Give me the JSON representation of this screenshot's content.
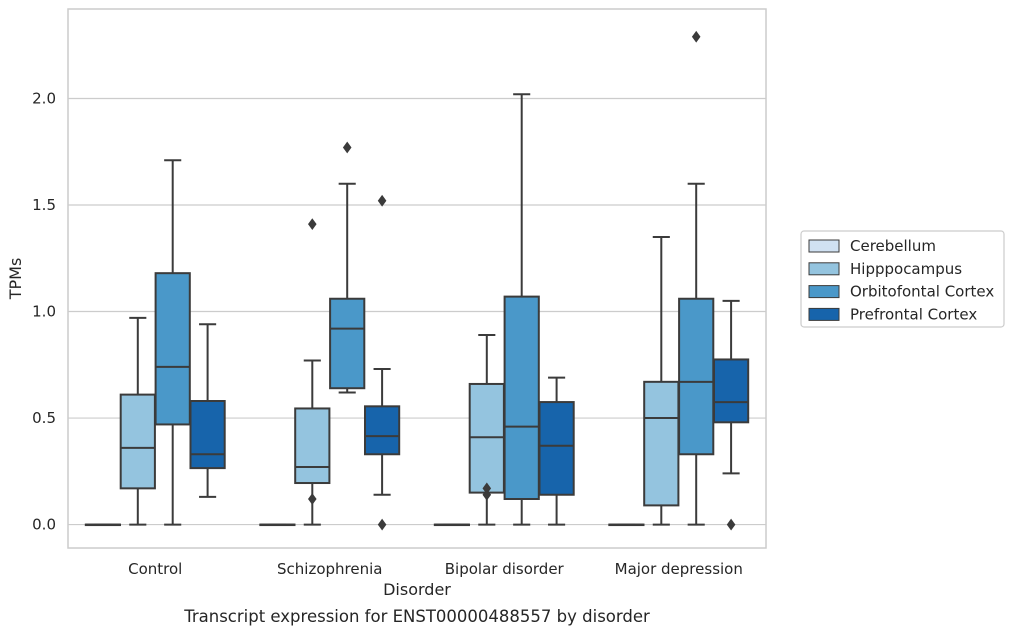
{
  "chart_data": {
    "type": "boxplot",
    "xlabel": "Disorder",
    "ylabel": "TPMs",
    "caption": "Transcript expression for ENST00000488557 by disorder",
    "ylim": [
      -0.11,
      2.42
    ],
    "yticks": [
      0.0,
      0.5,
      1.0,
      1.5,
      2.0
    ],
    "ytick_labels": [
      "0.0",
      "0.5",
      "1.0",
      "1.5",
      "2.0"
    ],
    "grid": "horizontal",
    "legend_position": "right",
    "categories": [
      "Control",
      "Schizophrenia",
      "Bipolar disorder",
      "Major depression"
    ],
    "series": [
      {
        "name": "Cerebellum",
        "color": "#d0e1f2",
        "boxes": [
          {
            "q1": 0.0,
            "median": 0.0,
            "q3": 0.0,
            "whisker_low": 0.0,
            "whisker_high": 0.0,
            "outliers": []
          },
          {
            "q1": 0.0,
            "median": 0.0,
            "q3": 0.0,
            "whisker_low": 0.0,
            "whisker_high": 0.0,
            "outliers": []
          },
          {
            "q1": 0.0,
            "median": 0.0,
            "q3": 0.0,
            "whisker_low": 0.0,
            "whisker_high": 0.0,
            "outliers": []
          },
          {
            "q1": 0.0,
            "median": 0.0,
            "q3": 0.0,
            "whisker_low": 0.0,
            "whisker_high": 0.0,
            "outliers": []
          }
        ]
      },
      {
        "name": "Hipppocampus",
        "color": "#94c4df",
        "boxes": [
          {
            "q1": 0.17,
            "median": 0.36,
            "q3": 0.61,
            "whisker_low": 0.0,
            "whisker_high": 0.97,
            "outliers": []
          },
          {
            "q1": 0.195,
            "median": 0.27,
            "q3": 0.545,
            "whisker_low": 0.0,
            "whisker_high": 0.77,
            "outliers": [
              0.12,
              1.41
            ]
          },
          {
            "q1": 0.15,
            "median": 0.41,
            "q3": 0.66,
            "whisker_low": 0.0,
            "whisker_high": 0.89,
            "outliers": [
              0.14,
              0.17
            ]
          },
          {
            "q1": 0.09,
            "median": 0.5,
            "q3": 0.67,
            "whisker_low": 0.0,
            "whisker_high": 1.35,
            "outliers": []
          }
        ]
      },
      {
        "name": "Orbitofontal Cortex",
        "color": "#4a98c9",
        "boxes": [
          {
            "q1": 0.47,
            "median": 0.74,
            "q3": 1.18,
            "whisker_low": 0.0,
            "whisker_high": 1.71,
            "outliers": []
          },
          {
            "q1": 0.64,
            "median": 0.92,
            "q3": 1.06,
            "whisker_low": 0.62,
            "whisker_high": 1.6,
            "outliers": [
              1.77
            ]
          },
          {
            "q1": 0.12,
            "median": 0.46,
            "q3": 1.07,
            "whisker_low": 0.0,
            "whisker_high": 2.02,
            "outliers": []
          },
          {
            "q1": 0.33,
            "median": 0.67,
            "q3": 1.06,
            "whisker_low": 0.0,
            "whisker_high": 1.6,
            "outliers": [
              2.29
            ]
          }
        ]
      },
      {
        "name": "Prefrontal Cortex",
        "color": "#1764ab",
        "boxes": [
          {
            "q1": 0.265,
            "median": 0.33,
            "q3": 0.58,
            "whisker_low": 0.13,
            "whisker_high": 0.94,
            "outliers": []
          },
          {
            "q1": 0.33,
            "median": 0.415,
            "q3": 0.555,
            "whisker_low": 0.14,
            "whisker_high": 0.73,
            "outliers": [
              0.0,
              1.52
            ]
          },
          {
            "q1": 0.14,
            "median": 0.37,
            "q3": 0.575,
            "whisker_low": 0.0,
            "whisker_high": 0.69,
            "outliers": []
          },
          {
            "q1": 0.48,
            "median": 0.575,
            "q3": 0.775,
            "whisker_low": 0.24,
            "whisker_high": 1.05,
            "outliers": [
              0.0
            ]
          }
        ]
      }
    ]
  }
}
